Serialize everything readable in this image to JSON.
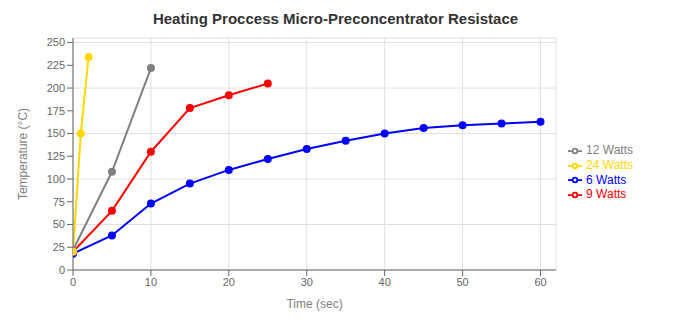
{
  "chart_data": {
    "type": "line",
    "title": "Heating Proccess Micro-Preconcentrator Resistace",
    "xlabel": "Time (sec)",
    "ylabel": "Temperature (°C)",
    "series": [
      {
        "name": "6 Watts",
        "color": "#0000FF",
        "marker": "o",
        "x": [
          0,
          5,
          10,
          15,
          20,
          25,
          30,
          35,
          40,
          45,
          50,
          55,
          60
        ],
        "values": [
          18,
          38,
          73,
          95,
          110,
          122,
          133,
          142,
          150,
          156,
          159,
          161,
          163
        ]
      },
      {
        "name": "9 Watts",
        "color": "#FF0000",
        "marker": "o",
        "x": [
          0,
          5,
          10,
          15,
          20,
          25
        ],
        "values": [
          20,
          65,
          130,
          178,
          192,
          205
        ]
      },
      {
        "name": "12 Watts",
        "color": "#808080",
        "marker": "o",
        "x": [
          0,
          5,
          10
        ],
        "values": [
          22,
          108,
          222
        ]
      },
      {
        "name": "24 Watts",
        "color": "#FFD700",
        "marker": "o",
        "x": [
          0,
          1,
          2
        ],
        "values": [
          20,
          150,
          234
        ]
      }
    ],
    "xlim": [
      0,
      62
    ],
    "ylim": [
      0,
      255
    ],
    "xticks": [
      0,
      10,
      20,
      30,
      40,
      50,
      60
    ],
    "yticks": [
      0,
      25,
      50,
      75,
      100,
      125,
      150,
      175,
      200,
      225,
      250
    ],
    "grid": true,
    "legend": "right"
  }
}
